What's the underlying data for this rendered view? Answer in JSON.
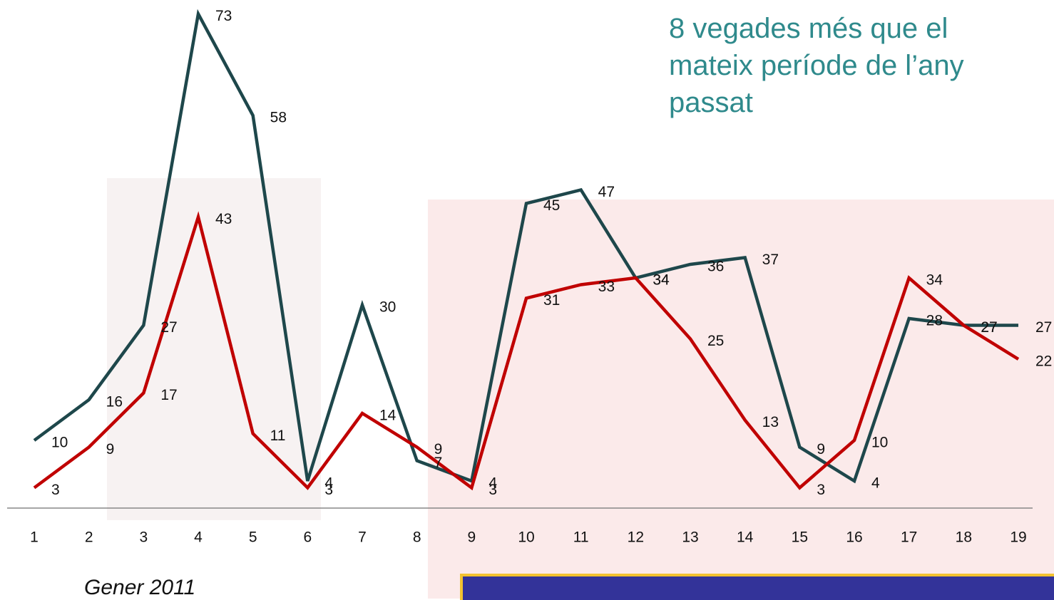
{
  "chart_data": {
    "type": "line",
    "annotation": "8 vegades més que el mateix període de l’any passat",
    "footnote": "Gener 2011",
    "categories": [
      "1",
      "2",
      "3",
      "4",
      "5",
      "6",
      "7",
      "8",
      "9",
      "10",
      "11",
      "12",
      "13",
      "14",
      "15",
      "16",
      "17",
      "18",
      "19"
    ],
    "series": [
      {
        "color": "#1e474b",
        "values": [
          10,
          16,
          27,
          73,
          58,
          4,
          30,
          7,
          4,
          45,
          47,
          34,
          36,
          37,
          9,
          4,
          28,
          27,
          27
        ]
      },
      {
        "color": "#c00000",
        "values": [
          3,
          9,
          17,
          43,
          11,
          3,
          14,
          9,
          3,
          31,
          33,
          34,
          25,
          13,
          3,
          10,
          34,
          27,
          22
        ]
      }
    ],
    "ylim": [
      0,
      75
    ]
  }
}
